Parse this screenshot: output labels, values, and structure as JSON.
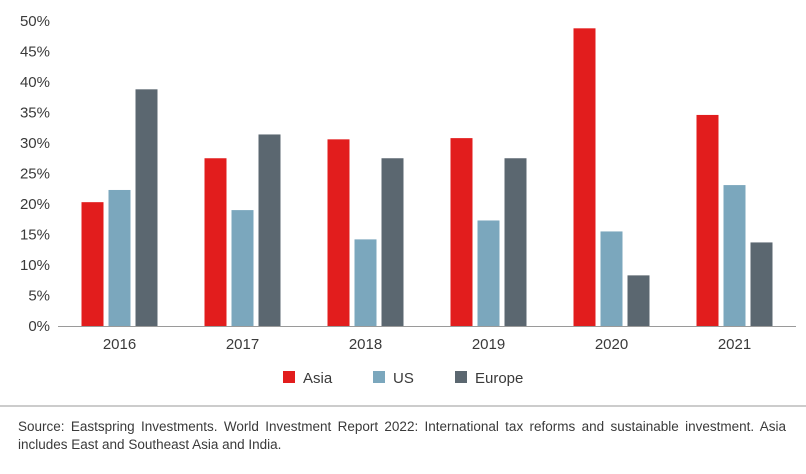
{
  "chart_data": {
    "type": "bar",
    "title": "",
    "xlabel": "",
    "ylabel": "",
    "categories": [
      "2016",
      "2017",
      "2018",
      "2019",
      "2020",
      "2021"
    ],
    "series": [
      {
        "name": "Asia",
        "values": [
          20.3,
          27.5,
          30.6,
          30.8,
          48.8,
          34.6
        ]
      },
      {
        "name": "US",
        "values": [
          22.3,
          19.0,
          14.2,
          17.3,
          15.5,
          23.1
        ]
      },
      {
        "name": "Europe",
        "values": [
          38.8,
          31.4,
          27.5,
          27.5,
          8.3,
          13.7
        ]
      }
    ],
    "ylim": [
      0,
      50
    ],
    "yticks": [
      0,
      5,
      10,
      15,
      20,
      25,
      30,
      35,
      40,
      45,
      50
    ],
    "ytick_labels": [
      "0%",
      "5%",
      "10%",
      "15%",
      "20%",
      "25%",
      "30%",
      "35%",
      "40%",
      "45%",
      "50%"
    ],
    "grid": false,
    "legend_position": "bottom-center",
    "colors": {
      "Asia": "#e21d1d",
      "US": "#7ba7bd",
      "Europe": "#5b6770"
    }
  },
  "note": {
    "text": "Source: Eastspring Investments. World Investment Report 2022: International tax reforms and sustainable investment. Asia includes East and Southeast Asia and India."
  }
}
